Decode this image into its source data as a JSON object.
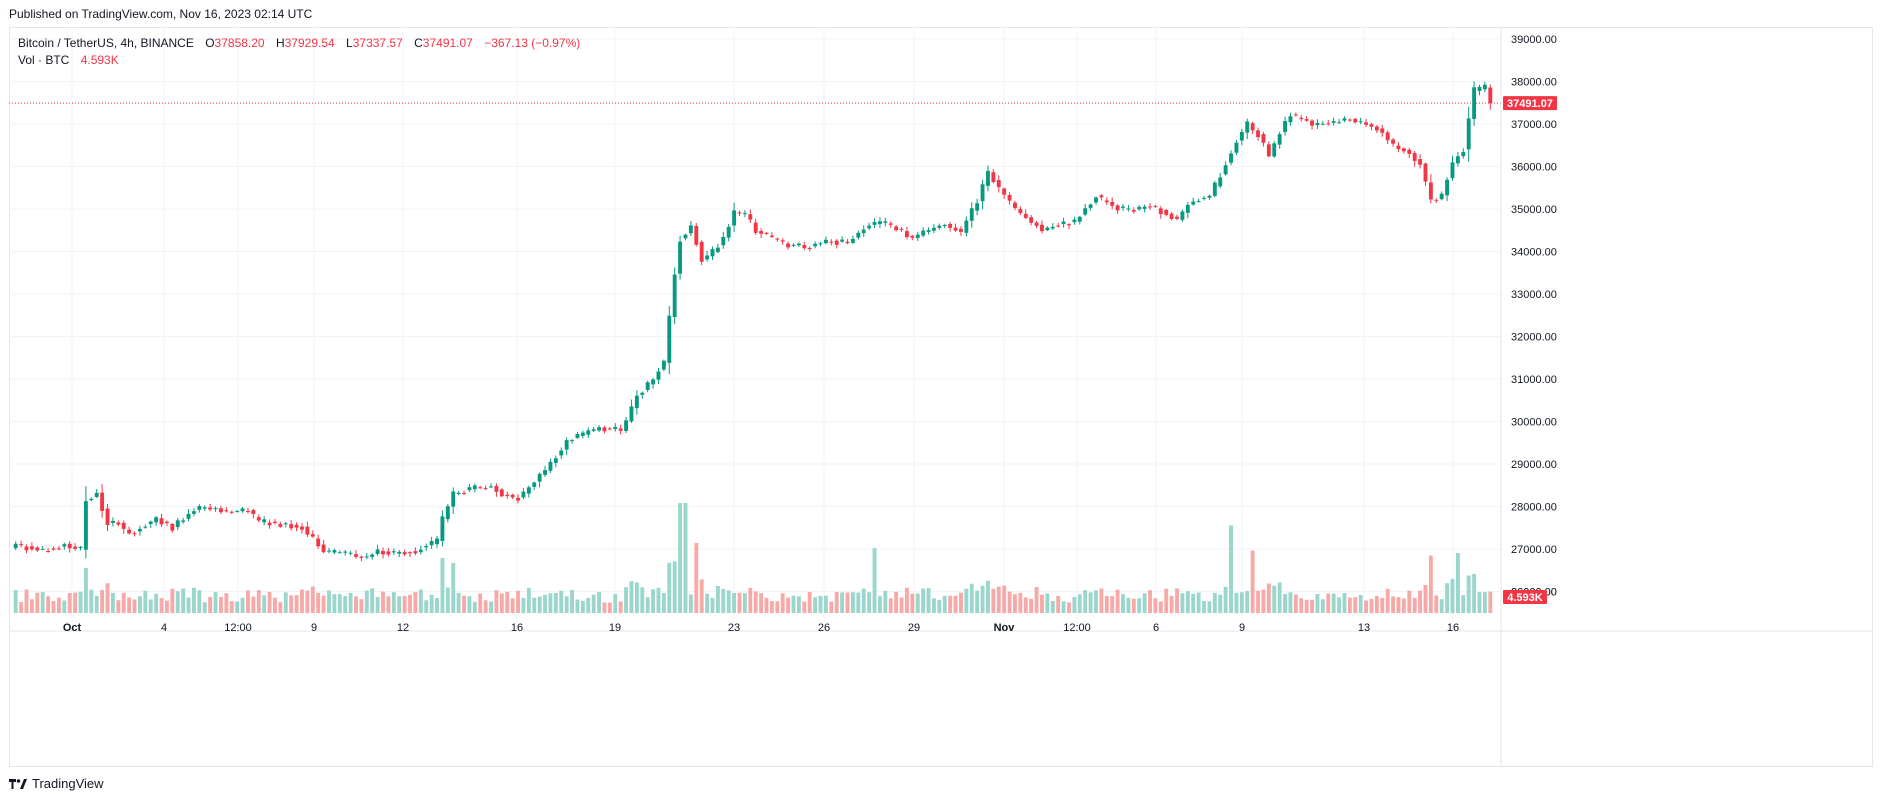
{
  "header": {
    "published": "Published on TradingView.com, Nov 16, 2023 02:14 UTC"
  },
  "legend": {
    "symbol": "Bitcoin / TetherUS, 4h, BINANCE",
    "open_label": "O",
    "open": "37858.20",
    "high_label": "H",
    "high": "37929.54",
    "low_label": "L",
    "low": "37337.57",
    "close_label": "C",
    "close": "37491.07",
    "change": "−367.13 (−0.97%)",
    "vol_label": "Vol · BTC",
    "vol_value": "4.593K"
  },
  "footer": {
    "brand": "TradingView",
    "logo": "tradingview-logo-icon"
  },
  "colors": {
    "up": "#089981",
    "down": "#f23645",
    "up_vol": "#9ad6cc",
    "down_vol": "#f7a9a7",
    "grid": "#f0f3fa"
  },
  "chart_data": {
    "type": "candlestick",
    "interval": "4h",
    "x_range": [
      "2023-09-28",
      "2023-11-16"
    ],
    "y_range": [
      25650,
      39300
    ],
    "y_ticks": [
      "39000.00",
      "38000.00",
      "37000.00",
      "36000.00",
      "35000.00",
      "34000.00",
      "33000.00",
      "32000.00",
      "31000.00",
      "30000.00",
      "29000.00",
      "28000.00",
      "27000.00",
      "26000.00"
    ],
    "x_ticks": [
      "Oct",
      "4",
      "12:00",
      "9",
      "12",
      "16",
      "19",
      "23",
      "26",
      "29",
      "Nov",
      "12:00",
      "6",
      "9",
      "13",
      "16"
    ],
    "last_price_label": "37491.07",
    "last_volume_label": "4.593K",
    "price_path": [
      [
        0,
        27100
      ],
      [
        5,
        26950
      ],
      [
        6,
        27000
      ],
      [
        9,
        27100
      ],
      [
        12,
        27000
      ],
      [
        13,
        28150
      ],
      [
        15,
        28300
      ],
      [
        17,
        27600
      ],
      [
        19,
        27600
      ],
      [
        21,
        27350
      ],
      [
        23,
        27500
      ],
      [
        26,
        27700
      ],
      [
        29,
        27500
      ],
      [
        33,
        27950
      ],
      [
        36,
        27950
      ],
      [
        39,
        27900
      ],
      [
        43,
        27900
      ],
      [
        45,
        27650
      ],
      [
        48,
        27600
      ],
      [
        53,
        27500
      ],
      [
        57,
        26950
      ],
      [
        61,
        26900
      ],
      [
        65,
        26800
      ],
      [
        67,
        26950
      ],
      [
        70,
        26900
      ],
      [
        74,
        26950
      ],
      [
        78,
        27200
      ],
      [
        79,
        27700
      ],
      [
        81,
        28300
      ],
      [
        84,
        28400
      ],
      [
        88,
        28500
      ],
      [
        90,
        28300
      ],
      [
        93,
        28200
      ],
      [
        96,
        28600
      ],
      [
        99,
        29000
      ],
      [
        102,
        29550
      ],
      [
        105,
        29700
      ],
      [
        108,
        29850
      ],
      [
        112,
        29800
      ],
      [
        113,
        30000
      ],
      [
        115,
        30600
      ],
      [
        118,
        31000
      ],
      [
        120,
        31400
      ],
      [
        122,
        33500
      ],
      [
        123,
        34300
      ],
      [
        125,
        34600
      ],
      [
        127,
        33800
      ],
      [
        129,
        34000
      ],
      [
        131,
        34300
      ],
      [
        133,
        34900
      ],
      [
        135,
        34900
      ],
      [
        137,
        34500
      ],
      [
        140,
        34300
      ],
      [
        143,
        34150
      ],
      [
        147,
        34100
      ],
      [
        150,
        34250
      ],
      [
        154,
        34200
      ],
      [
        157,
        34550
      ],
      [
        160,
        34700
      ],
      [
        163,
        34550
      ],
      [
        166,
        34300
      ],
      [
        169,
        34500
      ],
      [
        172,
        34650
      ],
      [
        175,
        34450
      ],
      [
        178,
        35200
      ],
      [
        180,
        35850
      ],
      [
        182,
        35500
      ],
      [
        185,
        35000
      ],
      [
        188,
        34700
      ],
      [
        190,
        34500
      ],
      [
        193,
        34650
      ],
      [
        196,
        34700
      ],
      [
        198,
        35000
      ],
      [
        200,
        35300
      ],
      [
        202,
        35150
      ],
      [
        204,
        35000
      ],
      [
        207,
        35000
      ],
      [
        210,
        35050
      ],
      [
        213,
        34900
      ],
      [
        215,
        34750
      ],
      [
        217,
        35100
      ],
      [
        219,
        35250
      ],
      [
        221,
        35300
      ],
      [
        223,
        35800
      ],
      [
        226,
        36600
      ],
      [
        228,
        37000
      ],
      [
        230,
        36750
      ],
      [
        232,
        36250
      ],
      [
        234,
        36800
      ],
      [
        236,
        37250
      ],
      [
        238,
        37100
      ],
      [
        240,
        37000
      ],
      [
        244,
        37050
      ],
      [
        247,
        37100
      ],
      [
        250,
        37000
      ],
      [
        253,
        36800
      ],
      [
        255,
        36500
      ],
      [
        258,
        36300
      ],
      [
        260,
        36100
      ],
      [
        262,
        35200
      ],
      [
        264,
        35300
      ],
      [
        266,
        36100
      ],
      [
        268,
        36400
      ],
      [
        270,
        37800
      ],
      [
        272,
        37858
      ],
      [
        273,
        37491
      ]
    ],
    "volume_profile": {
      "base_btc": 2000,
      "spikes_btc": [
        [
          13,
          9000
        ],
        [
          79,
          11000
        ],
        [
          81,
          10000
        ],
        [
          123,
          22000
        ],
        [
          124,
          22000
        ],
        [
          126,
          14000
        ],
        [
          159,
          13000
        ],
        [
          225,
          17500
        ],
        [
          229,
          12500
        ],
        [
          262,
          11500
        ],
        [
          267,
          12000
        ]
      ]
    }
  }
}
